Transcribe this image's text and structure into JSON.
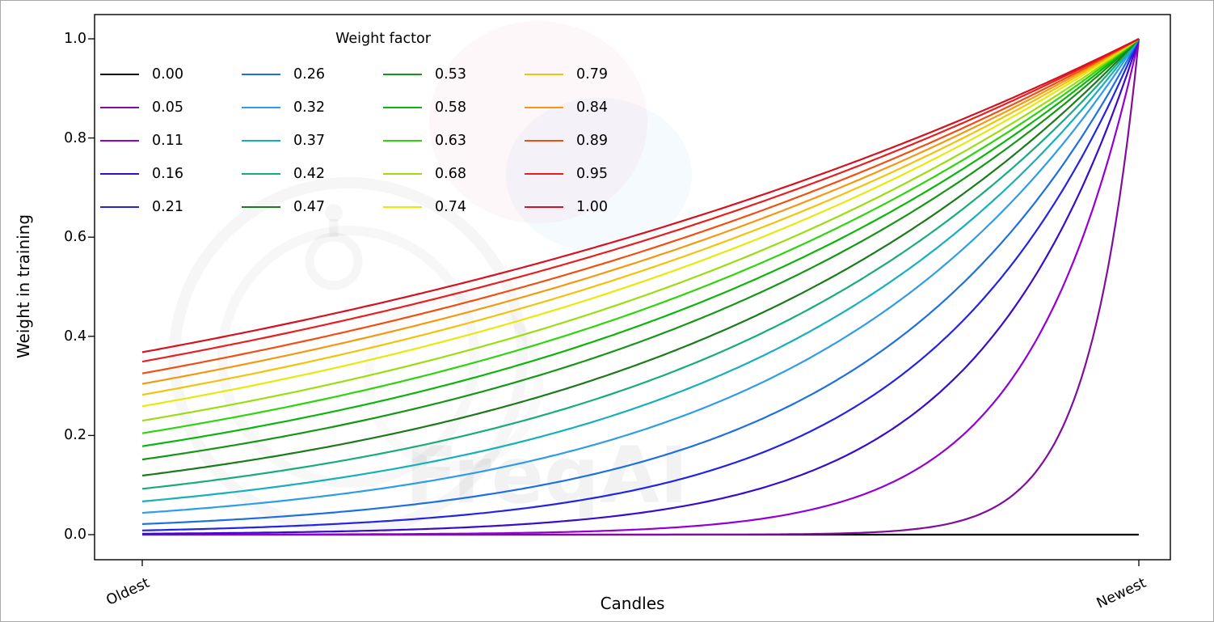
{
  "figure": {
    "background": "#ffffff",
    "border_color": "#a8a8a8"
  },
  "watermark": {
    "text": "FreqAI"
  },
  "chart_data": {
    "type": "line",
    "title": "",
    "xlabel": "Candles",
    "ylabel": "Weight in training",
    "x_tick_labels": [
      "Oldest",
      "Newest"
    ],
    "x_tick_rotation_deg": 25,
    "y_ticks": [
      0.0,
      0.2,
      0.4,
      0.6,
      0.8,
      1.0
    ],
    "y_tick_labels": [
      "0.0",
      "0.2",
      "0.4",
      "0.6",
      "0.8",
      "1.0"
    ],
    "ylim": [
      0,
      1
    ],
    "grid": false,
    "legend": {
      "title": "Weight factor",
      "position": "upper left",
      "columns": 4,
      "rows": 5
    },
    "curve_formula": "weight(x) = exp(-(1-x)/wf) for x in [0,1] (oldest to newest); wf=0 gives flat 0",
    "series": [
      {
        "label": "0.00",
        "wf": 0.0,
        "color": "#000000",
        "oldest_weight": 0.0,
        "newest_weight": 0.0
      },
      {
        "label": "0.05",
        "wf": 0.05,
        "color": "#820d9c",
        "oldest_weight": 0.0,
        "newest_weight": 1.0
      },
      {
        "label": "0.11",
        "wf": 0.11,
        "color": "#9400d3",
        "oldest_weight": 0.0,
        "newest_weight": 1.0
      },
      {
        "label": "0.16",
        "wf": 0.16,
        "color": "#3a0bc8",
        "oldest_weight": 0.002,
        "newest_weight": 1.0
      },
      {
        "label": "0.21",
        "wf": 0.21,
        "color": "#2323e6",
        "oldest_weight": 0.009,
        "newest_weight": 1.0
      },
      {
        "label": "0.26",
        "wf": 0.26,
        "color": "#1e6fe0",
        "oldest_weight": 0.021,
        "newest_weight": 1.0
      },
      {
        "label": "0.32",
        "wf": 0.32,
        "color": "#2f9ce8",
        "oldest_weight": 0.044,
        "newest_weight": 1.0
      },
      {
        "label": "0.37",
        "wf": 0.37,
        "color": "#16b0ba",
        "oldest_weight": 0.067,
        "newest_weight": 1.0
      },
      {
        "label": "0.42",
        "wf": 0.42,
        "color": "#17ab7f",
        "oldest_weight": 0.092,
        "newest_weight": 1.0
      },
      {
        "label": "0.47",
        "wf": 0.47,
        "color": "#1b7a1b",
        "oldest_weight": 0.119,
        "newest_weight": 1.0
      },
      {
        "label": "0.53",
        "wf": 0.53,
        "color": "#169616",
        "oldest_weight": 0.152,
        "newest_weight": 1.0
      },
      {
        "label": "0.58",
        "wf": 0.58,
        "color": "#0cb50c",
        "oldest_weight": 0.178,
        "newest_weight": 1.0
      },
      {
        "label": "0.63",
        "wf": 0.63,
        "color": "#2ed40e",
        "oldest_weight": 0.204,
        "newest_weight": 1.0
      },
      {
        "label": "0.68",
        "wf": 0.68,
        "color": "#9bdd10",
        "oldest_weight": 0.23,
        "newest_weight": 1.0
      },
      {
        "label": "0.74",
        "wf": 0.74,
        "color": "#e9e80b",
        "oldest_weight": 0.259,
        "newest_weight": 1.0
      },
      {
        "label": "0.79",
        "wf": 0.79,
        "color": "#f3c20b",
        "oldest_weight": 0.282,
        "newest_weight": 1.0
      },
      {
        "label": "0.84",
        "wf": 0.84,
        "color": "#f59810",
        "oldest_weight": 0.304,
        "newest_weight": 1.0
      },
      {
        "label": "0.89",
        "wf": 0.89,
        "color": "#f04f12",
        "oldest_weight": 0.325,
        "newest_weight": 1.0
      },
      {
        "label": "0.95",
        "wf": 0.95,
        "color": "#e62020",
        "oldest_weight": 0.349,
        "newest_weight": 1.0
      },
      {
        "label": "1.00",
        "wf": 1.0,
        "color": "#d5121f",
        "oldest_weight": 0.368,
        "newest_weight": 1.0
      }
    ]
  }
}
